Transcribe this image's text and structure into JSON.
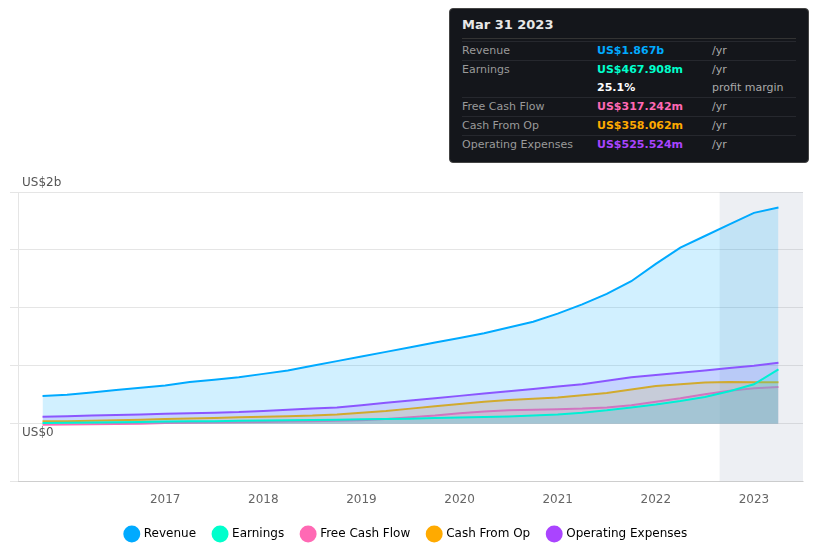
{
  "chart_data": {
    "type": "area",
    "x": [
      2015.75,
      2016.0,
      2016.25,
      2016.5,
      2016.75,
      2017.0,
      2017.25,
      2017.5,
      2017.75,
      2018.0,
      2018.25,
      2018.5,
      2018.75,
      2019.0,
      2019.25,
      2019.5,
      2019.75,
      2020.0,
      2020.25,
      2020.5,
      2020.75,
      2021.0,
      2021.25,
      2021.5,
      2021.75,
      2022.0,
      2022.25,
      2022.5,
      2022.75,
      2023.0,
      2023.25
    ],
    "series": [
      {
        "name": "Revenue",
        "color": "#00aaff",
        "values": [
          0.24,
          0.25,
          0.27,
          0.29,
          0.31,
          0.33,
          0.36,
          0.38,
          0.4,
          0.43,
          0.46,
          0.5,
          0.54,
          0.58,
          0.62,
          0.66,
          0.7,
          0.74,
          0.78,
          0.83,
          0.88,
          0.95,
          1.03,
          1.12,
          1.23,
          1.38,
          1.52,
          1.62,
          1.72,
          1.82,
          1.867
        ]
      },
      {
        "name": "Earnings",
        "color": "#00ffcc",
        "values": [
          0.005,
          0.007,
          0.01,
          0.012,
          0.015,
          0.018,
          0.02,
          0.022,
          0.025,
          0.028,
          0.03,
          0.032,
          0.035,
          0.038,
          0.04,
          0.043,
          0.048,
          0.053,
          0.058,
          0.063,
          0.07,
          0.08,
          0.095,
          0.115,
          0.14,
          0.165,
          0.195,
          0.23,
          0.28,
          0.34,
          0.468
        ]
      },
      {
        "name": "Free Cash Flow",
        "color": "#ff69b4",
        "values": [
          -0.01,
          -0.008,
          -0.005,
          -0.003,
          0.0,
          0.005,
          0.008,
          0.01,
          0.012,
          0.015,
          0.018,
          0.022,
          0.025,
          0.03,
          0.04,
          0.055,
          0.07,
          0.09,
          0.105,
          0.115,
          0.12,
          0.125,
          0.13,
          0.14,
          0.16,
          0.19,
          0.22,
          0.255,
          0.285,
          0.305,
          0.317
        ]
      },
      {
        "name": "Cash From Op",
        "color": "#ffaa00",
        "values": [
          0.02,
          0.022,
          0.025,
          0.03,
          0.035,
          0.04,
          0.045,
          0.05,
          0.055,
          0.06,
          0.065,
          0.07,
          0.08,
          0.095,
          0.11,
          0.13,
          0.15,
          0.17,
          0.19,
          0.205,
          0.215,
          0.225,
          0.245,
          0.265,
          0.295,
          0.325,
          0.34,
          0.355,
          0.36,
          0.358,
          0.358
        ]
      },
      {
        "name": "Operating Expenses",
        "color": "#aa44ff",
        "values": [
          0.06,
          0.065,
          0.07,
          0.075,
          0.08,
          0.085,
          0.09,
          0.095,
          0.1,
          0.11,
          0.12,
          0.13,
          0.14,
          0.16,
          0.18,
          0.2,
          0.22,
          0.24,
          0.26,
          0.28,
          0.3,
          0.32,
          0.34,
          0.37,
          0.4,
          0.42,
          0.44,
          0.46,
          0.48,
          0.5,
          0.526
        ]
      }
    ],
    "xlim": [
      2015.5,
      2023.5
    ],
    "xticks": [
      2017,
      2018,
      2019,
      2020,
      2021,
      2022,
      2023
    ],
    "ylim": [
      -0.5,
      2.0
    ],
    "yticks": [
      -0.5,
      0,
      0.5,
      1,
      1.5,
      2
    ],
    "tick_labels": "x",
    "grid": true,
    "legend": "bottom",
    "highlight_x": [
      2022.65,
      2023.5
    ],
    "annotations": [
      {
        "text": "US$2b",
        "x": 2015.5,
        "y": 2.0
      },
      {
        "text": "US$0",
        "x": 2015.5,
        "y": 0
      }
    ],
    "info_box": {
      "title": "Mar 31 2023",
      "rows": [
        {
          "label": "Revenue",
          "value": "US$1.867b",
          "suffix": "/yr",
          "color": "#00aaff"
        },
        {
          "label": "Earnings",
          "value": "US$467.908m",
          "suffix": "/yr",
          "color": "#00ffcc"
        },
        {
          "value": "25.1%",
          "suffix": "profit margin"
        },
        {
          "label": "Free Cash Flow",
          "value": "US$317.242m",
          "suffix": "/yr",
          "color": "#ff69b4"
        },
        {
          "label": "Cash From Op",
          "value": "US$358.062m",
          "suffix": "/yr",
          "color": "#ffaa00"
        },
        {
          "label": "Operating Expenses",
          "value": "US$525.524m",
          "suffix": "/yr",
          "color": "#aa44ff"
        }
      ]
    }
  }
}
